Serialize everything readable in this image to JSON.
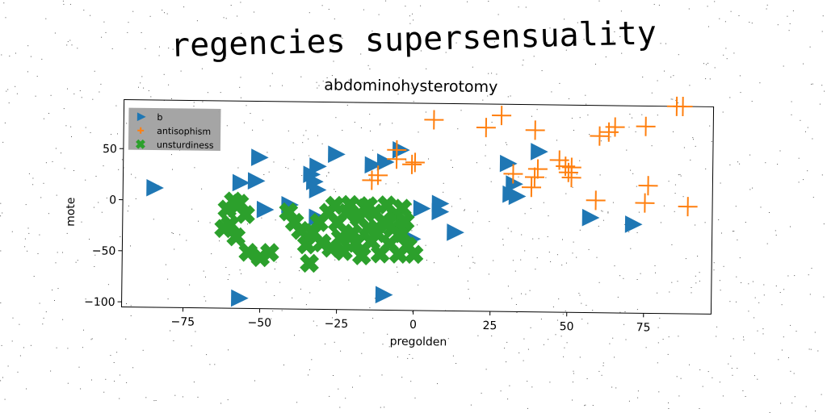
{
  "suptitle": "regencies supersensuality",
  "chart_data": {
    "type": "scatter",
    "title": "abdominohysterotomy",
    "xlabel": "pregolden",
    "ylabel": "mote",
    "xlim": [
      -95,
      97
    ],
    "ylim": [
      -105,
      98
    ],
    "xticks": [
      -75,
      -50,
      -25,
      0,
      25,
      50,
      75
    ],
    "yticks": [
      -100,
      -50,
      0,
      50
    ],
    "legend_position": "top-left",
    "series": [
      {
        "name": "b",
        "marker": "triangle-right",
        "color": "#1f77b4",
        "points": [
          [
            -85,
            12
          ],
          [
            -57,
            -95
          ],
          [
            -57,
            18
          ],
          [
            -52,
            20
          ],
          [
            -51,
            43
          ],
          [
            -49,
            -8
          ],
          [
            -41,
            -3
          ],
          [
            -34,
            27
          ],
          [
            -33,
            20
          ],
          [
            -32,
            12
          ],
          [
            -32,
            35
          ],
          [
            -32,
            -15
          ],
          [
            -26,
            47
          ],
          [
            -14,
            37
          ],
          [
            -10,
            40
          ],
          [
            -10,
            -90
          ],
          [
            -5,
            52
          ],
          [
            -1,
            -35
          ],
          [
            2,
            -5
          ],
          [
            8,
            0
          ],
          [
            8,
            -8
          ],
          [
            13,
            -28
          ],
          [
            30,
            40
          ],
          [
            31,
            10
          ],
          [
            32,
            20
          ],
          [
            33,
            8
          ],
          [
            40,
            52
          ],
          [
            57,
            -12
          ],
          [
            71,
            -18
          ]
        ]
      },
      {
        "name": "antisophism",
        "marker": "plus",
        "color": "#ff7f0e",
        "points": [
          [
            -14,
            22
          ],
          [
            -12,
            27
          ],
          [
            -6,
            52
          ],
          [
            -6,
            43
          ],
          [
            -1,
            38
          ],
          [
            0,
            40
          ],
          [
            6,
            82
          ],
          [
            23,
            75
          ],
          [
            28,
            87
          ],
          [
            32,
            30
          ],
          [
            38,
            17
          ],
          [
            39,
            27
          ],
          [
            39,
            73
          ],
          [
            40,
            35
          ],
          [
            47,
            44
          ],
          [
            49,
            38
          ],
          [
            50,
            32
          ],
          [
            51,
            37
          ],
          [
            51,
            27
          ],
          [
            59,
            5
          ],
          [
            60,
            68
          ],
          [
            63,
            72
          ],
          [
            65,
            77
          ],
          [
            75,
            78
          ],
          [
            75,
            3
          ],
          [
            76,
            20
          ],
          [
            85,
            98
          ],
          [
            87,
            98
          ],
          [
            89,
            0
          ]
        ]
      },
      {
        "name": "unsturdiness",
        "marker": "x",
        "color": "#2ca02c",
        "points": [
          [
            -62,
            -27
          ],
          [
            -61,
            -8
          ],
          [
            -60,
            -23
          ],
          [
            -59,
            0
          ],
          [
            -58,
            -35
          ],
          [
            -57,
            -2
          ],
          [
            -55,
            -13
          ],
          [
            -54,
            -50
          ],
          [
            -50,
            -55
          ],
          [
            -47,
            -50
          ],
          [
            -41,
            -10
          ],
          [
            -39,
            -20
          ],
          [
            -37,
            -28
          ],
          [
            -35,
            -42
          ],
          [
            -34,
            -60
          ],
          [
            -33,
            -30
          ],
          [
            -31,
            -20
          ],
          [
            -30,
            -40
          ],
          [
            -28,
            -10
          ],
          [
            -27,
            -45
          ],
          [
            -26,
            -3
          ],
          [
            -25,
            -20
          ],
          [
            -24,
            -35
          ],
          [
            -23,
            -48
          ],
          [
            -22,
            -10
          ],
          [
            -21,
            -2
          ],
          [
            -20,
            -30
          ],
          [
            -19,
            -40
          ],
          [
            -18,
            -15
          ],
          [
            -17,
            -52
          ],
          [
            -16,
            -5
          ],
          [
            -15,
            -25
          ],
          [
            -15,
            -3
          ],
          [
            -14,
            -38
          ],
          [
            -13,
            -10
          ],
          [
            -12,
            -30
          ],
          [
            -11,
            -50
          ],
          [
            -10,
            -18
          ],
          [
            -9,
            -2
          ],
          [
            -8,
            -40
          ],
          [
            -7,
            -25
          ],
          [
            -6,
            -12
          ],
          [
            -5,
            -50
          ],
          [
            -4,
            -30
          ],
          [
            -4,
            -5
          ],
          [
            -3,
            -18
          ],
          [
            -2,
            -42
          ],
          [
            0,
            -50
          ]
        ]
      }
    ]
  }
}
